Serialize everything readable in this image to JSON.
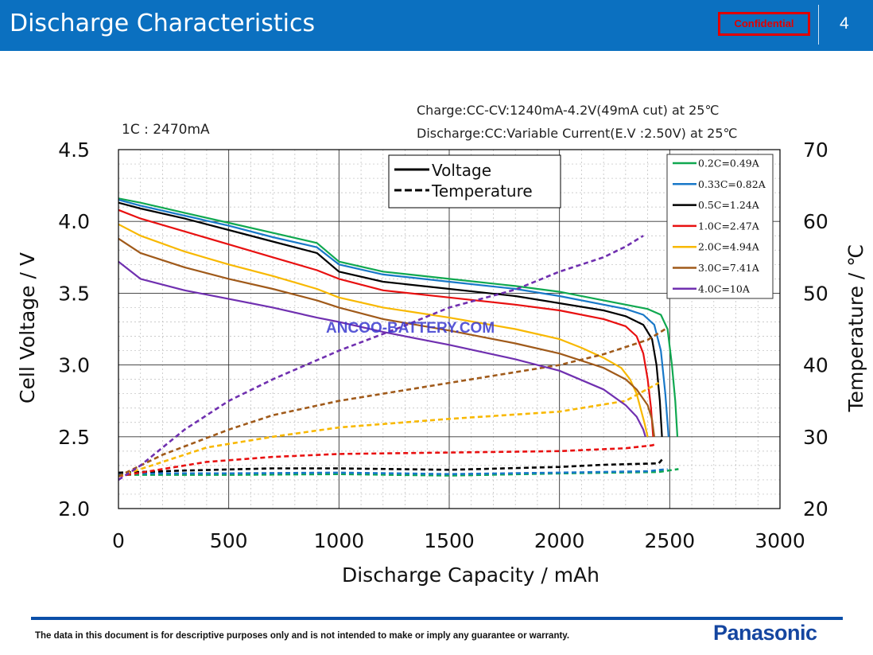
{
  "header": {
    "title": "Discharge Characteristics",
    "badge": "Confidential",
    "page_number": "4"
  },
  "footer": {
    "disclaimer": "The data in this document is for descriptive purposes only and is not intended to make or imply any guarantee or warranty.",
    "logo": "Panasonic"
  },
  "chart_data": {
    "type": "line",
    "annotations": {
      "c_rate": "1C : 2470mA",
      "charge": "Charge:CC-CV:1240mA-4.2V(49mA  cut) at 25℃",
      "discharge": "Discharge:CC:Variable  Current(E.V :2.50V) at 25℃",
      "watermark": "ANCOO-BATTERY.COM"
    },
    "xlabel": "Discharge  Capacity / mAh",
    "ylabel": "Cell  Voltage  /  V",
    "y2label": "Temperature / ℃",
    "xlim": [
      0,
      3000
    ],
    "ylim": [
      2.0,
      4.5
    ],
    "y2lim": [
      20,
      70
    ],
    "xticks": [
      "0",
      "500",
      "1000",
      "1500",
      "2000",
      "2500",
      "3000"
    ],
    "yticks": [
      "2.0",
      "2.5",
      "3.0",
      "3.5",
      "4.0",
      "4.5"
    ],
    "y2ticks": [
      "20",
      "30",
      "40",
      "50",
      "60",
      "70"
    ],
    "grid": true,
    "style_legend": {
      "solid": "Voltage",
      "dashed": "Temperature"
    },
    "series": [
      {
        "name": "0.2C=0.49A",
        "color": "#10a850",
        "voltage": [
          [
            0,
            4.16
          ],
          [
            100,
            4.13
          ],
          [
            300,
            4.06
          ],
          [
            500,
            3.99
          ],
          [
            700,
            3.92
          ],
          [
            900,
            3.85
          ],
          [
            1000,
            3.72
          ],
          [
            1200,
            3.65
          ],
          [
            1500,
            3.6
          ],
          [
            1800,
            3.55
          ],
          [
            2000,
            3.51
          ],
          [
            2200,
            3.45
          ],
          [
            2300,
            3.42
          ],
          [
            2400,
            3.39
          ],
          [
            2460,
            3.35
          ],
          [
            2490,
            3.25
          ],
          [
            2510,
            3.0
          ],
          [
            2525,
            2.75
          ],
          [
            2535,
            2.5
          ]
        ],
        "temperature": [
          [
            0,
            24.7
          ],
          [
            500,
            24.7
          ],
          [
            1000,
            24.8
          ],
          [
            1500,
            24.6
          ],
          [
            2000,
            24.9
          ],
          [
            2450,
            25.1
          ],
          [
            2540,
            25.5
          ]
        ]
      },
      {
        "name": "0.33C=0.82A",
        "color": "#1878c8",
        "voltage": [
          [
            0,
            4.15
          ],
          [
            100,
            4.11
          ],
          [
            300,
            4.04
          ],
          [
            500,
            3.97
          ],
          [
            700,
            3.89
          ],
          [
            900,
            3.82
          ],
          [
            1000,
            3.7
          ],
          [
            1200,
            3.63
          ],
          [
            1500,
            3.58
          ],
          [
            1800,
            3.53
          ],
          [
            2000,
            3.48
          ],
          [
            2200,
            3.42
          ],
          [
            2300,
            3.39
          ],
          [
            2380,
            3.35
          ],
          [
            2430,
            3.28
          ],
          [
            2460,
            3.1
          ],
          [
            2480,
            2.8
          ],
          [
            2495,
            2.5
          ]
        ],
        "temperature": [
          [
            0,
            24.9
          ],
          [
            500,
            24.9
          ],
          [
            1000,
            25.0
          ],
          [
            1500,
            24.8
          ],
          [
            2000,
            25.0
          ],
          [
            2400,
            25.2
          ],
          [
            2490,
            25.5
          ]
        ]
      },
      {
        "name": "0.5C=1.24A",
        "color": "#000000",
        "voltage": [
          [
            0,
            4.13
          ],
          [
            100,
            4.09
          ],
          [
            300,
            4.02
          ],
          [
            500,
            3.94
          ],
          [
            700,
            3.86
          ],
          [
            900,
            3.78
          ],
          [
            1000,
            3.65
          ],
          [
            1200,
            3.58
          ],
          [
            1500,
            3.53
          ],
          [
            1800,
            3.48
          ],
          [
            2000,
            3.43
          ],
          [
            2200,
            3.38
          ],
          [
            2300,
            3.34
          ],
          [
            2380,
            3.28
          ],
          [
            2420,
            3.18
          ],
          [
            2440,
            3.0
          ],
          [
            2455,
            2.75
          ],
          [
            2465,
            2.5
          ]
        ],
        "temperature": [
          [
            0,
            25.0
          ],
          [
            300,
            25.3
          ],
          [
            700,
            25.6
          ],
          [
            1000,
            25.6
          ],
          [
            1500,
            25.4
          ],
          [
            2000,
            25.8
          ],
          [
            2200,
            26.1
          ],
          [
            2450,
            26.3
          ],
          [
            2470,
            27.0
          ]
        ]
      },
      {
        "name": "1.0C=2.47A",
        "color": "#e81010",
        "voltage": [
          [
            0,
            4.08
          ],
          [
            100,
            4.02
          ],
          [
            300,
            3.93
          ],
          [
            500,
            3.84
          ],
          [
            700,
            3.75
          ],
          [
            900,
            3.66
          ],
          [
            1000,
            3.6
          ],
          [
            1200,
            3.52
          ],
          [
            1500,
            3.47
          ],
          [
            1800,
            3.42
          ],
          [
            2000,
            3.38
          ],
          [
            2200,
            3.32
          ],
          [
            2300,
            3.27
          ],
          [
            2350,
            3.2
          ],
          [
            2380,
            3.08
          ],
          [
            2400,
            2.9
          ],
          [
            2415,
            2.7
          ],
          [
            2425,
            2.5
          ]
        ],
        "temperature": [
          [
            0,
            24.5
          ],
          [
            200,
            25.5
          ],
          [
            400,
            26.5
          ],
          [
            700,
            27.2
          ],
          [
            1000,
            27.6
          ],
          [
            1500,
            27.8
          ],
          [
            2000,
            28.0
          ],
          [
            2300,
            28.4
          ],
          [
            2420,
            28.8
          ],
          [
            2440,
            29.0
          ]
        ]
      },
      {
        "name": "2.0C=4.94A",
        "color": "#f8b800",
        "voltage": [
          [
            0,
            3.98
          ],
          [
            100,
            3.9
          ],
          [
            300,
            3.79
          ],
          [
            500,
            3.7
          ],
          [
            700,
            3.62
          ],
          [
            900,
            3.53
          ],
          [
            1000,
            3.47
          ],
          [
            1200,
            3.4
          ],
          [
            1500,
            3.33
          ],
          [
            1800,
            3.25
          ],
          [
            2000,
            3.18
          ],
          [
            2100,
            3.12
          ],
          [
            2200,
            3.05
          ],
          [
            2280,
            2.98
          ],
          [
            2320,
            2.9
          ],
          [
            2350,
            2.8
          ],
          [
            2385,
            2.6
          ],
          [
            2400,
            2.5
          ]
        ],
        "temperature": [
          [
            0,
            24.5
          ],
          [
            200,
            26.5
          ],
          [
            400,
            28.5
          ],
          [
            700,
            30.0
          ],
          [
            1000,
            31.3
          ],
          [
            1500,
            32.5
          ],
          [
            2000,
            33.5
          ],
          [
            2300,
            35.0
          ],
          [
            2450,
            37.5
          ]
        ]
      },
      {
        "name": "3.0C=7.41A",
        "color": "#a05a1a",
        "voltage": [
          [
            0,
            3.88
          ],
          [
            100,
            3.78
          ],
          [
            300,
            3.68
          ],
          [
            500,
            3.6
          ],
          [
            700,
            3.53
          ],
          [
            900,
            3.45
          ],
          [
            1000,
            3.4
          ],
          [
            1200,
            3.32
          ],
          [
            1500,
            3.24
          ],
          [
            1800,
            3.15
          ],
          [
            2000,
            3.08
          ],
          [
            2200,
            2.98
          ],
          [
            2300,
            2.9
          ],
          [
            2350,
            2.83
          ],
          [
            2400,
            2.72
          ],
          [
            2420,
            2.62
          ],
          [
            2430,
            2.5
          ]
        ],
        "temperature": [
          [
            0,
            24.5
          ],
          [
            200,
            27.5
          ],
          [
            500,
            31.0
          ],
          [
            700,
            33.0
          ],
          [
            1000,
            35.0
          ],
          [
            1500,
            37.5
          ],
          [
            2000,
            40.0
          ],
          [
            2200,
            41.5
          ],
          [
            2400,
            43.5
          ],
          [
            2480,
            45.0
          ]
        ]
      },
      {
        "name": "4.0C=10A",
        "color": "#7030b0",
        "voltage": [
          [
            0,
            3.72
          ],
          [
            100,
            3.6
          ],
          [
            300,
            3.52
          ],
          [
            500,
            3.46
          ],
          [
            700,
            3.4
          ],
          [
            900,
            3.33
          ],
          [
            1000,
            3.3
          ],
          [
            1200,
            3.23
          ],
          [
            1500,
            3.14
          ],
          [
            1800,
            3.04
          ],
          [
            2000,
            2.96
          ],
          [
            2200,
            2.83
          ],
          [
            2300,
            2.72
          ],
          [
            2350,
            2.64
          ],
          [
            2380,
            2.55
          ],
          [
            2390,
            2.5
          ]
        ],
        "temperature": [
          [
            0,
            24.0
          ],
          [
            100,
            26.0
          ],
          [
            300,
            31.0
          ],
          [
            500,
            35.0
          ],
          [
            700,
            38.0
          ],
          [
            1000,
            42.0
          ],
          [
            1300,
            45.5
          ],
          [
            1500,
            48.0
          ],
          [
            1800,
            50.5
          ],
          [
            2000,
            53.0
          ],
          [
            2200,
            55.0
          ],
          [
            2300,
            56.5
          ],
          [
            2380,
            58.0
          ]
        ]
      }
    ]
  }
}
